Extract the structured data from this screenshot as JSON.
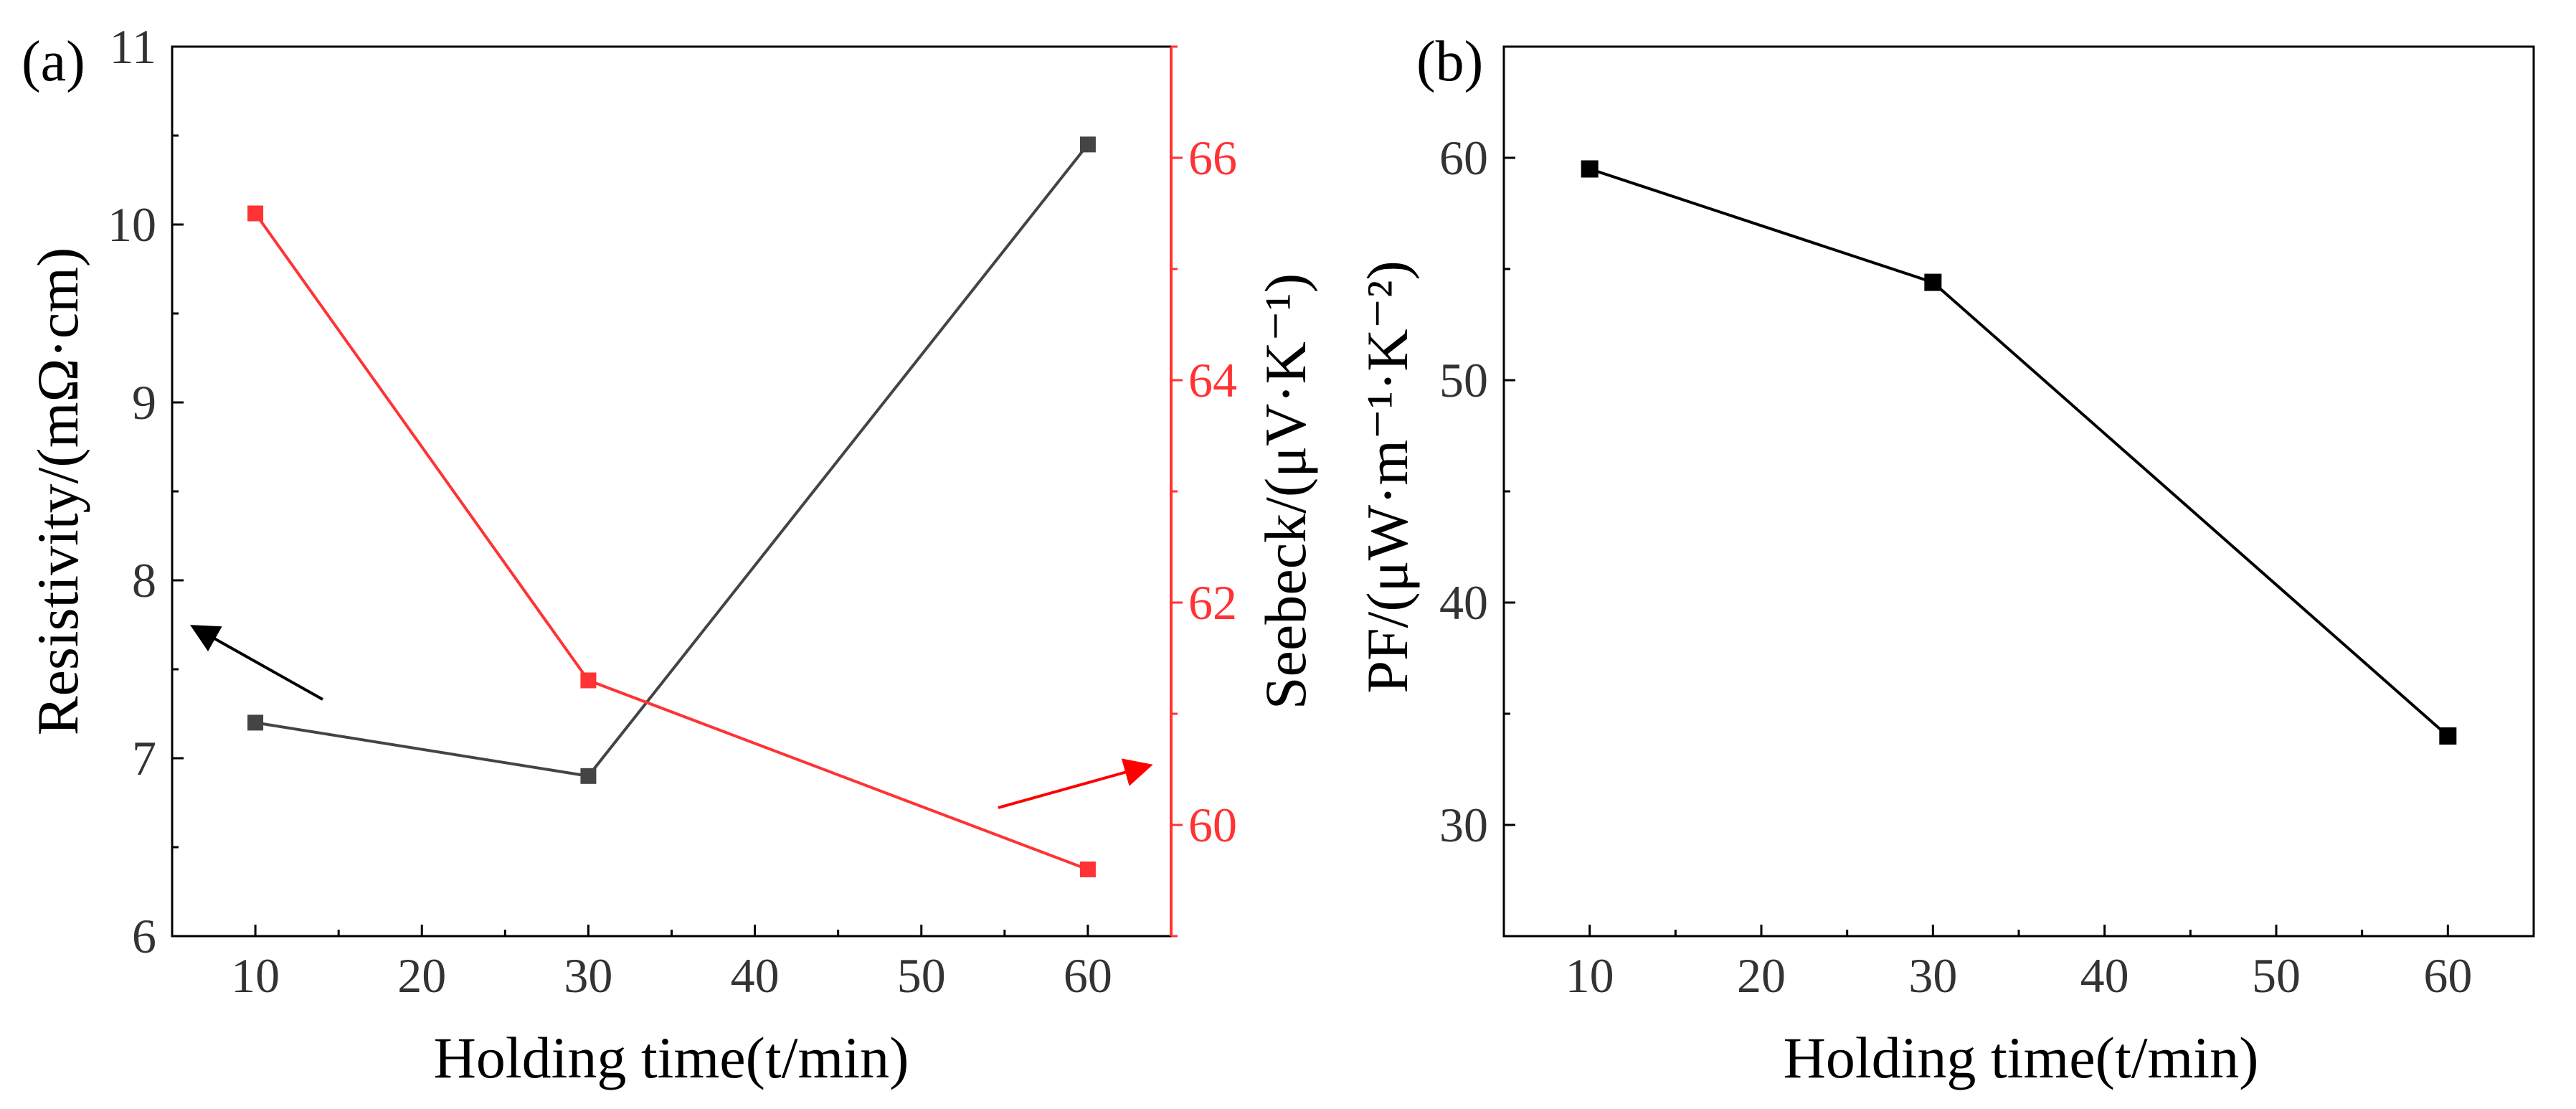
{
  "chart_data": [
    {
      "panel_label": "(a)",
      "type": "line",
      "x": [
        10,
        30,
        60
      ],
      "xlabel": "Holding time(t/min)",
      "xlim": [
        5,
        65
      ],
      "xticks": [
        10,
        20,
        30,
        40,
        50,
        60
      ],
      "xtick_labels": [
        "10",
        "20",
        "30",
        "40",
        "50",
        "60"
      ],
      "y_left": {
        "label": "Resistivity/(mΩ·cm)",
        "ylim": [
          6,
          11
        ],
        "ticks": [
          6,
          7,
          8,
          9,
          10,
          11
        ],
        "tick_labels": [
          "6",
          "7",
          "8",
          "9",
          "10",
          "11"
        ]
      },
      "y_right": {
        "label": "Seebeck/(μV·K⁻¹)",
        "ylim": [
          59,
          67
        ],
        "ticks": [
          60,
          62,
          64,
          66
        ],
        "tick_labels": [
          "60",
          "62",
          "64",
          "66"
        ],
        "color": "#ff3333"
      },
      "series": [
        {
          "name": "Resistivity",
          "axis": "left",
          "color": "#444444",
          "values": [
            7.2,
            6.9,
            10.45
          ]
        },
        {
          "name": "Seebeck",
          "axis": "right",
          "color": "#ff3333",
          "values": [
            65.5,
            61.3,
            59.6
          ]
        }
      ],
      "annotations": [
        {
          "type": "arrow",
          "direction": "left-up",
          "color": "#000000",
          "points_to": "left axis"
        },
        {
          "type": "arrow",
          "direction": "right-up",
          "color": "#ff0000",
          "points_to": "right axis"
        }
      ]
    },
    {
      "panel_label": "(b)",
      "type": "line",
      "x": [
        10,
        30,
        60
      ],
      "xlabel": "Holding time(t/min)",
      "xlim": [
        5,
        65
      ],
      "xticks": [
        10,
        20,
        30,
        40,
        50,
        60
      ],
      "xtick_labels": [
        "10",
        "20",
        "30",
        "40",
        "50",
        "60"
      ],
      "ylabel": "PF/(μW·m⁻¹·K⁻²)",
      "ylim": [
        25,
        65
      ],
      "yticks": [
        30,
        40,
        50,
        60
      ],
      "ytick_labels": [
        "30",
        "40",
        "50",
        "60"
      ],
      "series": [
        {
          "name": "PF",
          "color": "#000000",
          "values": [
            59.5,
            54.4,
            34.0
          ]
        }
      ]
    }
  ]
}
